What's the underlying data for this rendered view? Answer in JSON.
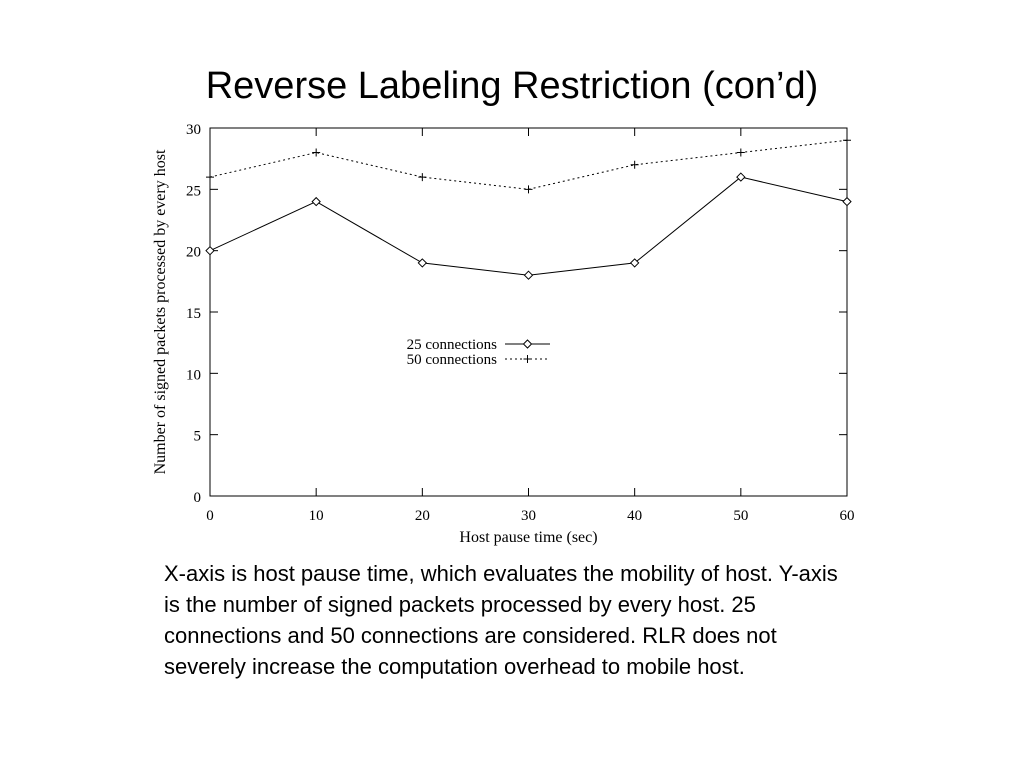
{
  "slide": {
    "title": "Reverse Labeling Restriction (con’d)",
    "caption": "X-axis is host pause time, which evaluates the mobility of host. Y-axis is the number of signed packets processed by every host. 25 connections and 50 connections are considered. RLR does not severely increase the computation overhead to mobile host."
  },
  "chart_data": {
    "type": "line",
    "title": "",
    "xlabel": "Host pause time (sec)",
    "ylabel": "Number of signed packets processed by every host",
    "x": [
      0,
      10,
      20,
      30,
      40,
      50,
      60
    ],
    "xlim": [
      0,
      60
    ],
    "ylim": [
      0,
      30
    ],
    "xticks": [
      "0",
      "10",
      "20",
      "30",
      "40",
      "50",
      "60"
    ],
    "yticks": [
      "0",
      "5",
      "10",
      "15",
      "20",
      "25",
      "30"
    ],
    "grid": false,
    "legend_position": "center",
    "series": [
      {
        "name": "25 connections",
        "values": [
          20,
          24,
          19,
          18,
          19,
          26,
          24
        ],
        "marker": "diamond",
        "line": "solid",
        "color": "#000000"
      },
      {
        "name": "50 connections",
        "values": [
          26,
          28,
          26,
          25,
          27,
          28,
          29
        ],
        "marker": "plus",
        "line": "dotted",
        "color": "#000000"
      }
    ]
  }
}
